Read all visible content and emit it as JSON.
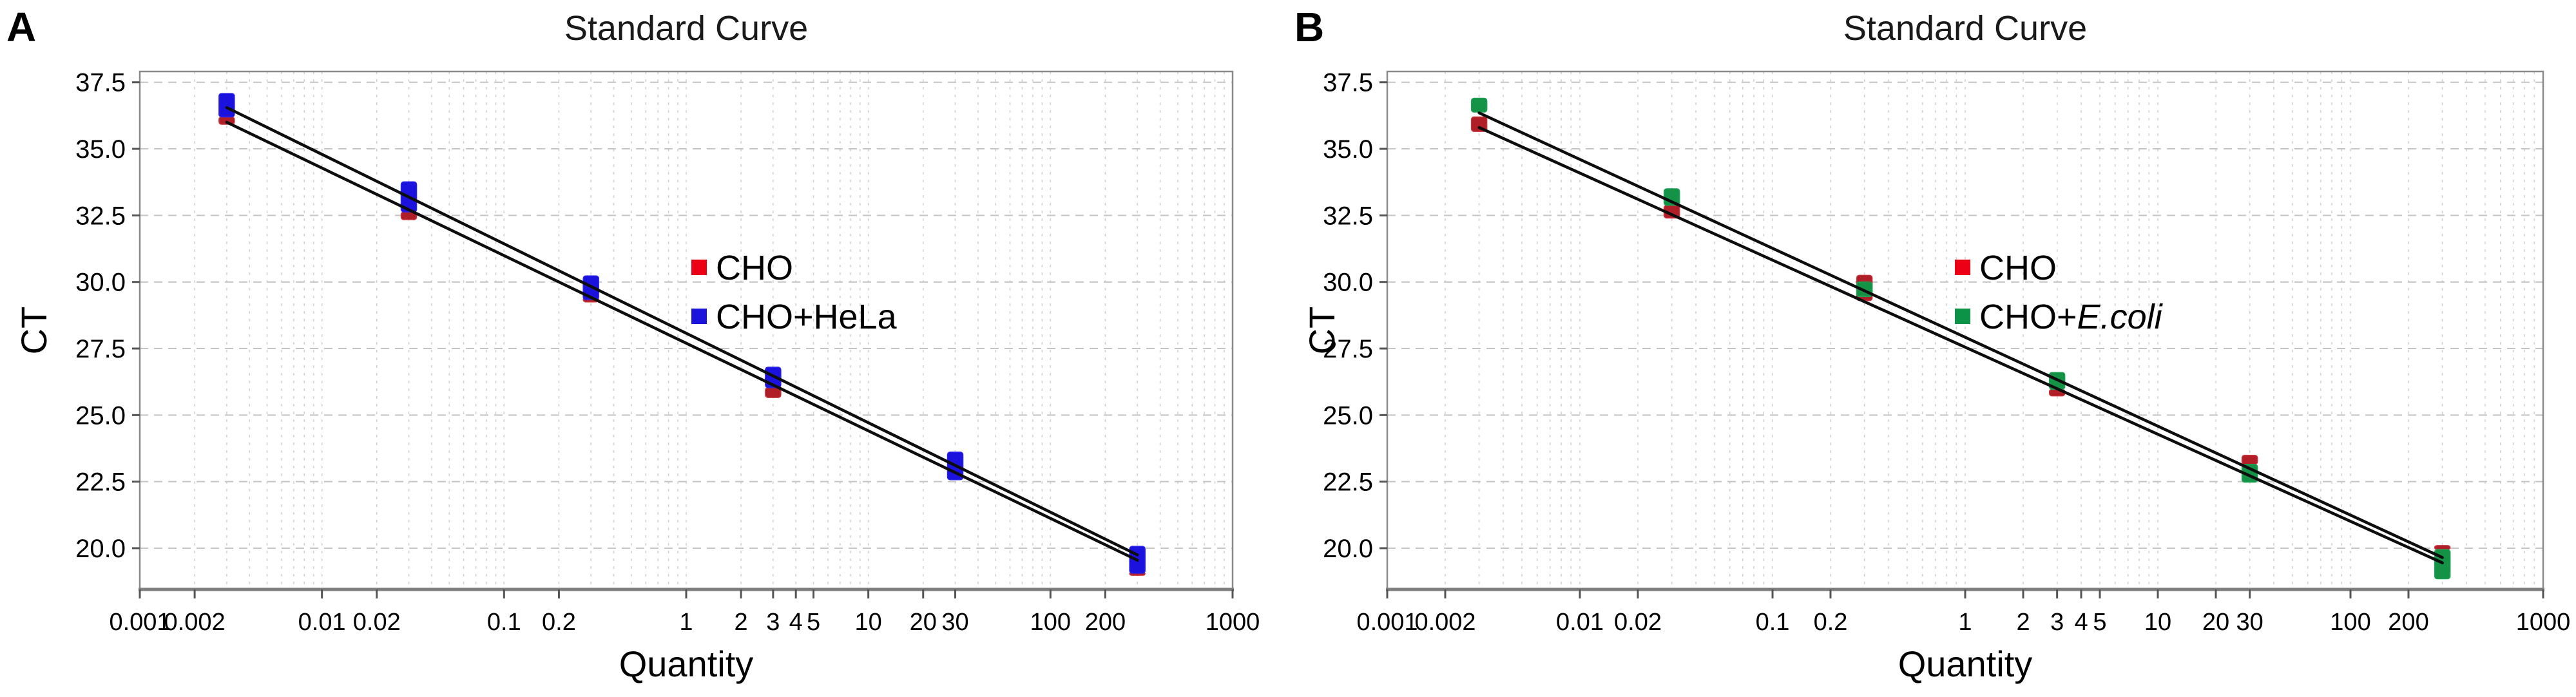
{
  "chart_data": [
    {
      "panel_label": "A",
      "type": "scatter",
      "title": "Standard Curve",
      "xlabel": "Quantity",
      "ylabel": "CT",
      "x_scale": "log",
      "xlim": [
        0.001,
        1000
      ],
      "ylim": [
        18.45,
        37.9
      ],
      "grid": true,
      "legend_position": "center-right-of-plot",
      "x_ticks": [
        {
          "v": 0.001,
          "label": "0.001"
        },
        {
          "v": 0.002,
          "label": "0.002"
        },
        {
          "v": 0.01,
          "label": "0.01"
        },
        {
          "v": 0.02,
          "label": "0.02"
        },
        {
          "v": 0.1,
          "label": "0.1"
        },
        {
          "v": 0.2,
          "label": "0.2"
        },
        {
          "v": 1,
          "label": "1"
        },
        {
          "v": 2,
          "label": "2"
        },
        {
          "v": 3,
          "label": "3"
        },
        {
          "v": 4,
          "label": "4"
        },
        {
          "v": 5,
          "label": "5"
        },
        {
          "v": 10,
          "label": "10"
        },
        {
          "v": 20,
          "label": "20"
        },
        {
          "v": 30,
          "label": "30"
        },
        {
          "v": 100,
          "label": "100"
        },
        {
          "v": 200,
          "label": "200"
        },
        {
          "v": 1000,
          "label": "1000"
        }
      ],
      "y_ticks": [
        {
          "v": 37.5,
          "label": "37.5"
        },
        {
          "v": 35.0,
          "label": "35.0"
        },
        {
          "v": 32.5,
          "label": "32.5"
        },
        {
          "v": 30.0,
          "label": "30.0"
        },
        {
          "v": 27.5,
          "label": "27.5"
        },
        {
          "v": 25.0,
          "label": "25.0"
        },
        {
          "v": 22.5,
          "label": "22.5"
        },
        {
          "v": 20.0,
          "label": "20.0"
        }
      ],
      "quantities": [
        0.003,
        0.03,
        0.3,
        3,
        30,
        300
      ],
      "series": [
        {
          "name": "CHO",
          "legend_text": "CHO",
          "legend_italic": "",
          "legend_color": "#ec0016",
          "marker_color": "#b01e28",
          "marker_stroke": "#c8323c"
        },
        {
          "name": "CHO+HeLa",
          "legend_text": "CHO+HeLa",
          "legend_italic": "",
          "legend_color": "#1c13dc",
          "marker_color": "#1b12dd",
          "marker_stroke": "#2a22e8"
        }
      ],
      "markers": [
        {
          "series": "CHO",
          "q": 0.003,
          "ct_low": 35.92,
          "ct_high": 36.2
        },
        {
          "series": "CHO+HeLa",
          "q": 0.003,
          "ct_low": 36.2,
          "ct_high": 37.08
        },
        {
          "series": "CHO",
          "q": 0.03,
          "ct_low": 32.34,
          "ct_high": 32.63
        },
        {
          "series": "CHO+HeLa",
          "q": 0.03,
          "ct_low": 32.63,
          "ct_high": 33.76
        },
        {
          "series": "CHO",
          "q": 0.3,
          "ct_low": 29.25,
          "ct_high": 29.42
        },
        {
          "series": "CHO+HeLa",
          "q": 0.3,
          "ct_low": 29.34,
          "ct_high": 30.23
        },
        {
          "series": "CHO",
          "q": 3,
          "ct_low": 25.66,
          "ct_high": 26.03
        },
        {
          "series": "CHO+HeLa",
          "q": 3,
          "ct_low": 26.03,
          "ct_high": 26.8
        },
        {
          "series": "CHO+HeLa",
          "q": 30,
          "ct_low": 22.57,
          "ct_high": 23.61
        },
        {
          "series": "CHO",
          "q": 300,
          "ct_low": 18.98,
          "ct_high": 19.1
        },
        {
          "series": "CHO+HeLa",
          "q": 300,
          "ct_low": 19.06,
          "ct_high": 20.07
        }
      ],
      "trend_lines": [
        {
          "q_start": 0.003,
          "ct_start": 36.55,
          "q_end": 300,
          "ct_end": 19.75
        },
        {
          "q_start": 0.003,
          "ct_start": 36.0,
          "q_end": 300,
          "ct_end": 19.55
        }
      ],
      "line_color": "#0d0d0d"
    },
    {
      "panel_label": "B",
      "type": "scatter",
      "title": "Standard Curve",
      "xlabel": "Quantity",
      "ylabel": "CT",
      "x_scale": "log",
      "xlim": [
        0.001,
        1000
      ],
      "ylim": [
        18.45,
        37.9
      ],
      "grid": true,
      "legend_position": "center-right-of-plot",
      "x_ticks": [
        {
          "v": 0.001,
          "label": "0.001"
        },
        {
          "v": 0.002,
          "label": "0.002"
        },
        {
          "v": 0.01,
          "label": "0.01"
        },
        {
          "v": 0.02,
          "label": "0.02"
        },
        {
          "v": 0.1,
          "label": "0.1"
        },
        {
          "v": 0.2,
          "label": "0.2"
        },
        {
          "v": 1,
          "label": "1"
        },
        {
          "v": 2,
          "label": "2"
        },
        {
          "v": 3,
          "label": "3"
        },
        {
          "v": 4,
          "label": "4"
        },
        {
          "v": 5,
          "label": "5"
        },
        {
          "v": 10,
          "label": "10"
        },
        {
          "v": 20,
          "label": "20"
        },
        {
          "v": 30,
          "label": "30"
        },
        {
          "v": 100,
          "label": "100"
        },
        {
          "v": 200,
          "label": "200"
        },
        {
          "v": 1000,
          "label": "1000"
        }
      ],
      "y_ticks": [
        {
          "v": 37.5,
          "label": "37.5"
        },
        {
          "v": 35.0,
          "label": "35.0"
        },
        {
          "v": 32.5,
          "label": "32.5"
        },
        {
          "v": 30.0,
          "label": "30.0"
        },
        {
          "v": 27.5,
          "label": "27.5"
        },
        {
          "v": 25.0,
          "label": "25.0"
        },
        {
          "v": 22.5,
          "label": "22.5"
        },
        {
          "v": 20.0,
          "label": "20.0"
        }
      ],
      "quantities": [
        0.003,
        0.03,
        0.3,
        3,
        30,
        300
      ],
      "series": [
        {
          "name": "CHO",
          "legend_text": "CHO",
          "legend_italic": "",
          "legend_color": "#ec0016",
          "marker_color": "#b01e28",
          "marker_stroke": "#c8323c"
        },
        {
          "name": "CHO+E.coli",
          "legend_text": "CHO+",
          "legend_italic": "E.coli",
          "legend_color": "#0c9347",
          "marker_color": "#149347",
          "marker_stroke": "#1da055"
        }
      ],
      "markers": [
        {
          "series": "CHO",
          "q": 0.003,
          "ct_low": 35.65,
          "ct_high": 36.2
        },
        {
          "series": "CHO+E.coli",
          "q": 0.003,
          "ct_low": 36.38,
          "ct_high": 36.9
        },
        {
          "series": "CHO",
          "q": 0.03,
          "ct_low": 32.4,
          "ct_high": 32.88
        },
        {
          "series": "CHO+E.coli",
          "q": 0.03,
          "ct_low": 32.88,
          "ct_high": 33.5
        },
        {
          "series": "CHO",
          "q": 0.3,
          "ct_low": 29.3,
          "ct_high": 30.25
        },
        {
          "series": "CHO+E.coli",
          "q": 0.3,
          "ct_low": 29.45,
          "ct_high": 30.0
        },
        {
          "series": "CHO",
          "q": 3,
          "ct_low": 25.72,
          "ct_high": 25.97
        },
        {
          "series": "CHO+E.coli",
          "q": 3,
          "ct_low": 25.97,
          "ct_high": 26.6
        },
        {
          "series": "CHO",
          "q": 30,
          "ct_low": 23.15,
          "ct_high": 23.49
        },
        {
          "series": "CHO+E.coli",
          "q": 30,
          "ct_low": 22.48,
          "ct_high": 23.15
        },
        {
          "series": "CHO",
          "q": 300,
          "ct_low": 19.95,
          "ct_high": 20.1
        },
        {
          "series": "CHO+E.coli",
          "q": 300,
          "ct_low": 18.85,
          "ct_high": 19.95
        }
      ],
      "trend_lines": [
        {
          "q_start": 0.003,
          "ct_start": 36.35,
          "q_end": 300,
          "ct_end": 19.65
        },
        {
          "q_start": 0.003,
          "ct_start": 35.8,
          "q_end": 300,
          "ct_end": 19.45
        }
      ],
      "line_color": "#0d0d0d"
    }
  ],
  "colors": {
    "background": "#ffffff",
    "grid_vertical": "#cfcfcf",
    "grid_horizontal": "#c4c4c4",
    "frame": "#8a8a8a",
    "axis_bottom": "#7e7e7e",
    "tick": "#555555",
    "text": "#000000",
    "title": "#1a1a1a"
  }
}
